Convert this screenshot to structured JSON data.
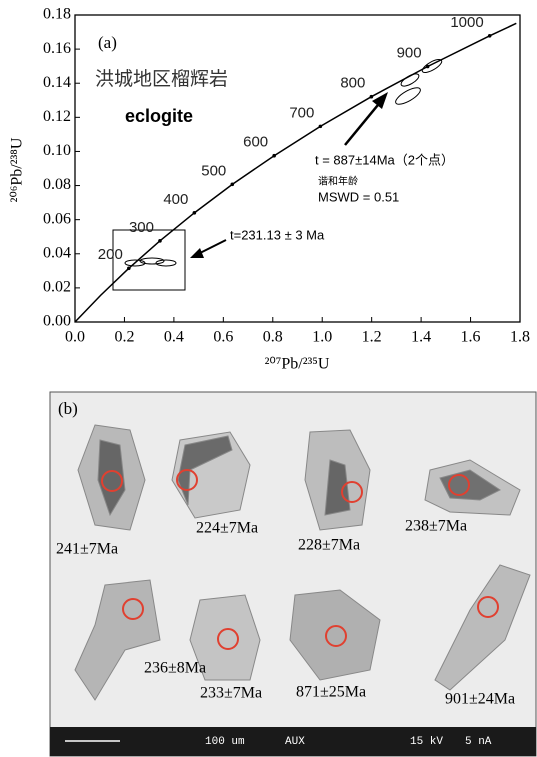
{
  "chart_data": {
    "type": "line",
    "panel_label": "(a)",
    "title": "洪城地区榴辉岩",
    "subtitle": "eclogite",
    "x_label": "²⁰⁷Pb/²³⁵U",
    "y_label": "²⁰⁶Pb/²³⁸U",
    "xlim": [
      0,
      1.8
    ],
    "ylim": [
      0,
      0.18
    ],
    "xticks": [
      {
        "value": 0,
        "label": "0.0"
      },
      0.2,
      0.4,
      0.6,
      0.8,
      {
        "value": 1,
        "label": "1.0"
      },
      1.2,
      1.4,
      1.6,
      1.8
    ],
    "yticks": [
      {
        "value": 0,
        "label": "0.00"
      },
      0.02,
      0.04,
      0.06,
      0.08,
      {
        "value": 0.1,
        "label": "0.10"
      },
      0.12,
      0.14,
      0.16,
      0.18
    ],
    "grid": false,
    "color": "#000000",
    "x": [
      0,
      0.1035,
      0.2177,
      0.3437,
      0.4828,
      0.6362,
      0.8056,
      0.9925,
      1.1988,
      1.4264,
      1.6774,
      1.785
    ],
    "values": [
      0,
      0.0156,
      0.0315,
      0.0476,
      0.064,
      0.0807,
      0.0975,
      0.1147,
      0.1321,
      0.1498,
      0.1678,
      0.1751
    ],
    "age_ticks": {
      "labels": [
        200,
        300,
        400,
        500,
        600,
        700,
        800,
        900,
        1000
      ],
      "x": [
        0.2177,
        0.3437,
        0.4828,
        0.6362,
        0.8056,
        0.9925,
        1.1988,
        1.4264,
        1.6774
      ],
      "y": [
        0.0315,
        0.0476,
        0.064,
        0.0807,
        0.0975,
        0.1147,
        0.1321,
        0.1498,
        0.1678
      ]
    },
    "annotations": [
      "t = 887±14Ma（2个点）",
      "谐和年龄",
      "MSWD = 0.51",
      "t=231.13 ± 3 Ma"
    ]
  },
  "image_panel": {
    "panel_label": "(b)",
    "grain_ages": [
      "241±7Ma",
      "224±7Ma",
      "228±7Ma",
      "238±7Ma",
      "236±8Ma",
      "233±7Ma",
      "871±25Ma",
      "901±24Ma"
    ],
    "footer": [
      "100 um",
      "AUX",
      "15 kV",
      "5 nA"
    ]
  }
}
